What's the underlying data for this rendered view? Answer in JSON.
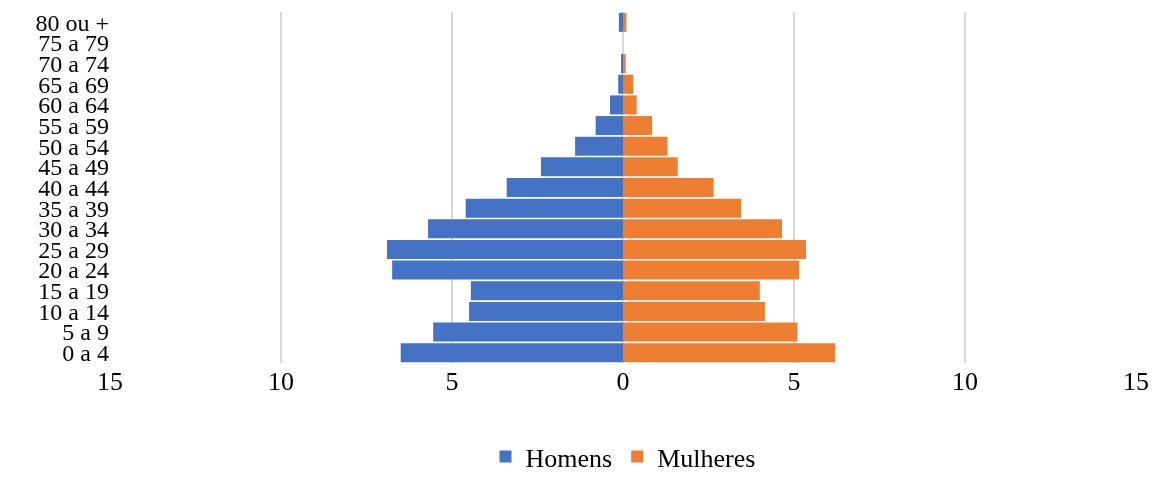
{
  "chart_data": {
    "type": "bar",
    "orientation": "horizontal",
    "stacked": true,
    "categories": [
      "80 ou +",
      "75 a 79",
      "70 a 74",
      "65 a 69",
      "60 a 64",
      "55 a 59",
      "50 a 54",
      "45 a 49",
      "40 a 44",
      "35 a 39",
      "30 a 34",
      "25 a 29",
      "20 a 24",
      "15 a 19",
      "10 a 14",
      "5 a 9",
      "0 a 4"
    ],
    "series": [
      {
        "name": "Homens",
        "color": "#4472c4",
        "values": [
          -0.12,
          0,
          -0.05,
          -0.14,
          -0.38,
          -0.8,
          -1.4,
          -2.4,
          -3.4,
          -4.6,
          -5.7,
          -6.9,
          -6.75,
          -4.45,
          -4.5,
          -5.55,
          -6.5
        ]
      },
      {
        "name": "Mulheres",
        "color": "#ed7d31",
        "values": [
          0.1,
          0,
          0.08,
          0.3,
          0.4,
          0.85,
          1.3,
          1.6,
          2.65,
          3.45,
          4.65,
          5.35,
          5.15,
          4.0,
          4.15,
          5.1,
          6.2
        ]
      }
    ],
    "xlim": [
      -15,
      15
    ],
    "xticks": [
      {
        "value": -15,
        "label": "15"
      },
      {
        "value": -10,
        "label": "10"
      },
      {
        "value": -5,
        "label": "5"
      },
      0,
      5,
      10,
      15
    ],
    "grid": "x",
    "legend": "bottom"
  }
}
